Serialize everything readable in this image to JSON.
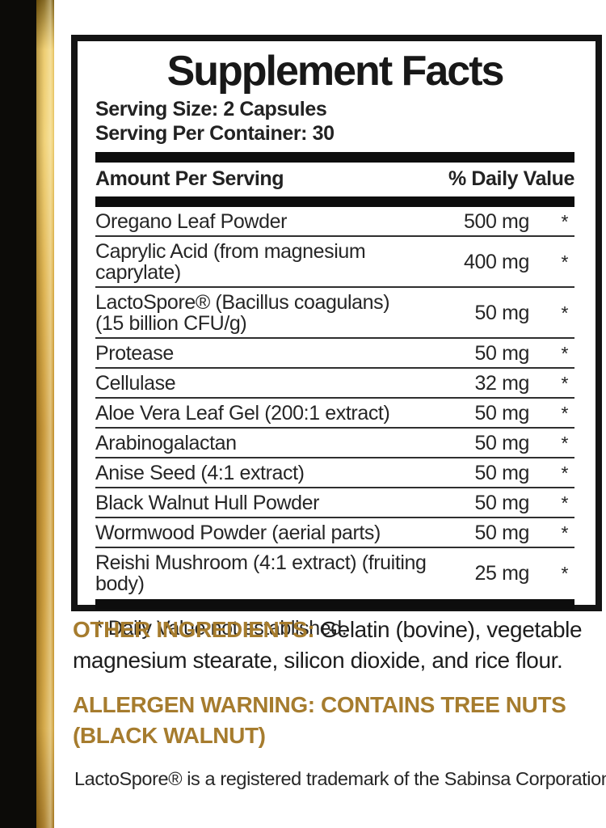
{
  "colors": {
    "accent_gold": "#a67c2e",
    "bar_black": "#0c0b08",
    "gold_stripe_mid": "#c9962e",
    "panel_border": "#141414",
    "text": "#262626"
  },
  "panel": {
    "title": "Supplement Facts",
    "serving_size": "Serving Size: 2 Capsules",
    "servings_per_container": "Serving Per Container: 30",
    "columns": {
      "left": "Amount Per Serving",
      "right": "% Daily Value"
    },
    "rows": [
      {
        "name": "Oregano Leaf Powder",
        "name2": "",
        "amount": "500 mg",
        "dv": "*"
      },
      {
        "name": "Caprylic Acid (from magnesium caprylate)",
        "name2": "",
        "amount": "400 mg",
        "dv": "*"
      },
      {
        "name": "LactoSpore® (Bacillus coagulans)",
        "name2": "(15 billion CFU/g)",
        "amount": "50 mg",
        "dv": "*"
      },
      {
        "name": "Protease",
        "name2": "",
        "amount": "50 mg",
        "dv": "*"
      },
      {
        "name": "Cellulase",
        "name2": "",
        "amount": "32 mg",
        "dv": "*"
      },
      {
        "name": "Aloe Vera Leaf Gel (200:1 extract)",
        "name2": "",
        "amount": "50 mg",
        "dv": "*"
      },
      {
        "name": "Arabinogalactan",
        "name2": "",
        "amount": "50 mg",
        "dv": "*"
      },
      {
        "name": "Anise Seed (4:1 extract)",
        "name2": "",
        "amount": "50 mg",
        "dv": "*"
      },
      {
        "name": "Black Walnut Hull Powder",
        "name2": "",
        "amount": "50 mg",
        "dv": "*"
      },
      {
        "name": "Wormwood Powder (aerial parts)",
        "name2": "",
        "amount": "50 mg",
        "dv": "*"
      },
      {
        "name": "Reishi Mushroom (4:1 extract) (fruiting body)",
        "name2": "",
        "amount": "25 mg",
        "dv": "*"
      }
    ],
    "footnote": "* Daily Value not established."
  },
  "other_ingredients": {
    "label": "OTHER INGREDIENTS:",
    "text": "Gelatin (bovine), vegetable magnesium stearate, silicon dioxide, and rice flour."
  },
  "allergen": {
    "line1": "ALLERGEN WARNING: CONTAINS TREE NUTS",
    "line2": "(BLACK WALNUT)"
  },
  "trademark": "LactoSpore® is a registered trademark of the Sabinsa Corporation"
}
